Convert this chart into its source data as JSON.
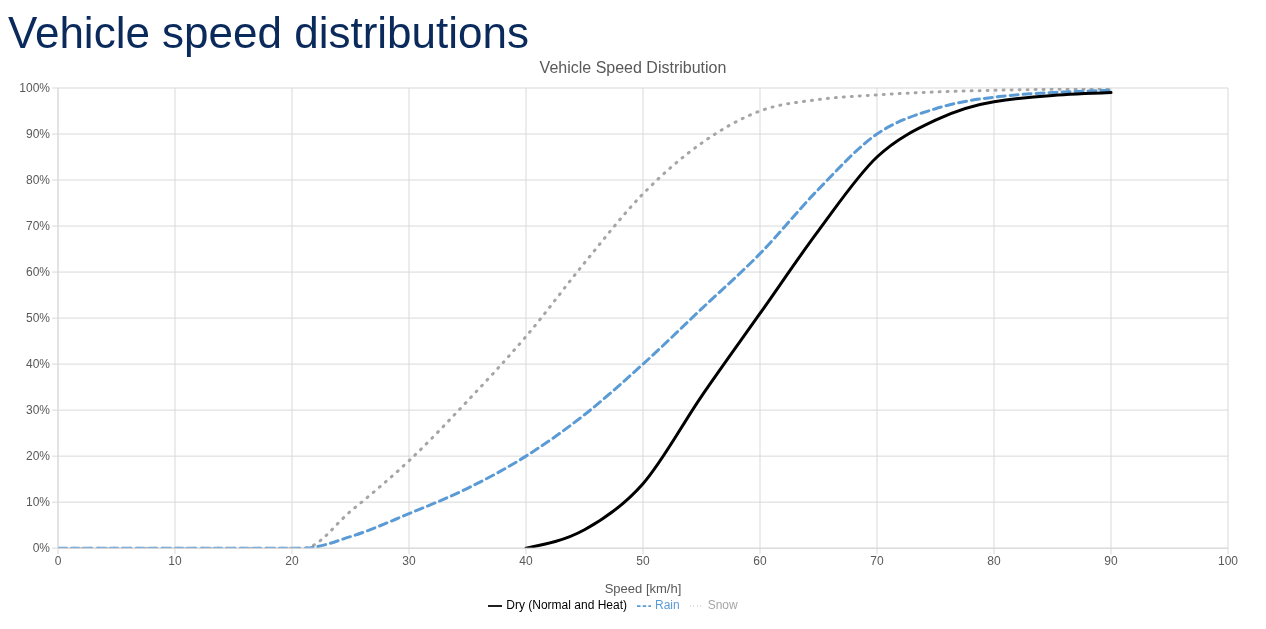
{
  "chart_data": {
    "type": "line",
    "title": "Vehicle speed distributions",
    "subtitle": "Vehicle Speed Distribution",
    "xlabel": "Speed [km/h]",
    "xlim": [
      0,
      100
    ],
    "xticks": [
      0,
      10,
      20,
      30,
      40,
      50,
      60,
      70,
      80,
      90,
      100
    ],
    "ylim": [
      0,
      100
    ],
    "yticks": [
      {
        "value": 0,
        "label": "0%"
      },
      {
        "value": 10,
        "label": "10%"
      },
      {
        "value": 20,
        "label": "20%"
      },
      {
        "value": 30,
        "label": "30%"
      },
      {
        "value": 40,
        "label": "40%"
      },
      {
        "value": 50,
        "label": "50%"
      },
      {
        "value": 60,
        "label": "60%"
      },
      {
        "value": 70,
        "label": "70%"
      },
      {
        "value": 80,
        "label": "80%"
      },
      {
        "value": 90,
        "label": "90%"
      },
      {
        "value": 100,
        "label": "100%"
      }
    ],
    "grid": true,
    "legend": "bottom",
    "marker": "none",
    "series": [
      {
        "name": "Snow",
        "color": "#a5a5a5",
        "line_style": "dotted",
        "x": [
          0,
          20,
          21,
          25,
          30,
          35,
          40,
          45,
          50,
          55,
          60,
          65,
          70,
          80,
          90
        ],
        "values": [
          0,
          0,
          0,
          8,
          19,
          32,
          46,
          62,
          77,
          88,
          95,
          97.5,
          98.5,
          99.5,
          99.8
        ]
      },
      {
        "name": "Rain",
        "color": "#5b9bd5",
        "line_style": "dashed",
        "x": [
          0,
          20,
          21,
          25,
          30,
          35,
          40,
          45,
          50,
          55,
          60,
          65,
          70,
          75,
          80,
          90
        ],
        "values": [
          0,
          0,
          0,
          2.5,
          7.5,
          13,
          20,
          29,
          40,
          52,
          64,
          78,
          90,
          95.5,
          98,
          99.5
        ]
      },
      {
        "name": "Dry (Normal and Heat)",
        "color": "#000000",
        "line_style": "solid",
        "x": [
          40,
          45,
          50,
          55,
          60,
          65,
          70,
          75,
          80,
          90
        ],
        "values": [
          0,
          4,
          14,
          33,
          51,
          69,
          85,
          93,
          97,
          99
        ]
      }
    ]
  }
}
